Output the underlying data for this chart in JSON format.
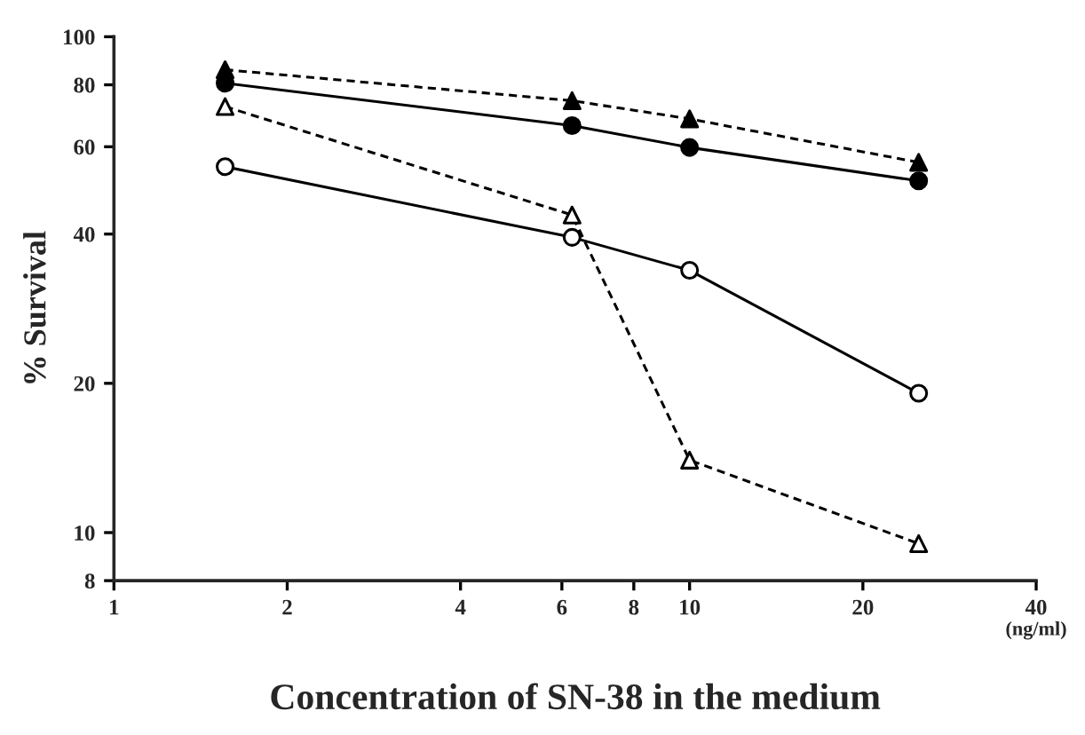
{
  "chart_data": {
    "type": "line",
    "xlabel": "Concentration of SN-38 in the medium",
    "ylabel": "% Survival",
    "x": [
      1.56,
      6.25,
      10,
      25
    ],
    "series": [
      {
        "color": "#000000",
        "marker": "triangle",
        "line_style": "dashed",
        "values": [
          85.8,
          74.3,
          68.3,
          55.8
        ]
      },
      {
        "color": "#000000",
        "marker": "circle",
        "line_style": "solid",
        "values": [
          80.6,
          66.2,
          59.8,
          51.2
        ]
      },
      {
        "color": "#000000",
        "marker": "triangle",
        "colors": [
          "#ffffff",
          "#ffffff",
          "#ffffff",
          "#ffffff"
        ],
        "line_style": "dashed",
        "values": [
          72.3,
          43.7,
          14.0,
          9.5
        ]
      },
      {
        "color": "#000000",
        "marker": "circle",
        "colors": [
          "#ffffff",
          "#ffffff",
          "#ffffff",
          "#ffffff"
        ],
        "line_style": "solid",
        "values": [
          54.7,
          39.4,
          33.8,
          19.1
        ]
      }
    ],
    "log": "xy",
    "xlim": [
      1,
      40
    ],
    "ylim": [
      8,
      100
    ],
    "xticks": [
      1,
      2,
      4,
      6,
      8,
      10,
      20,
      40
    ],
    "yticks": [
      8,
      10,
      20,
      40,
      60,
      80,
      100
    ],
    "grid": false,
    "legend": false,
    "annotations": [
      "(ng/ml)"
    ]
  }
}
